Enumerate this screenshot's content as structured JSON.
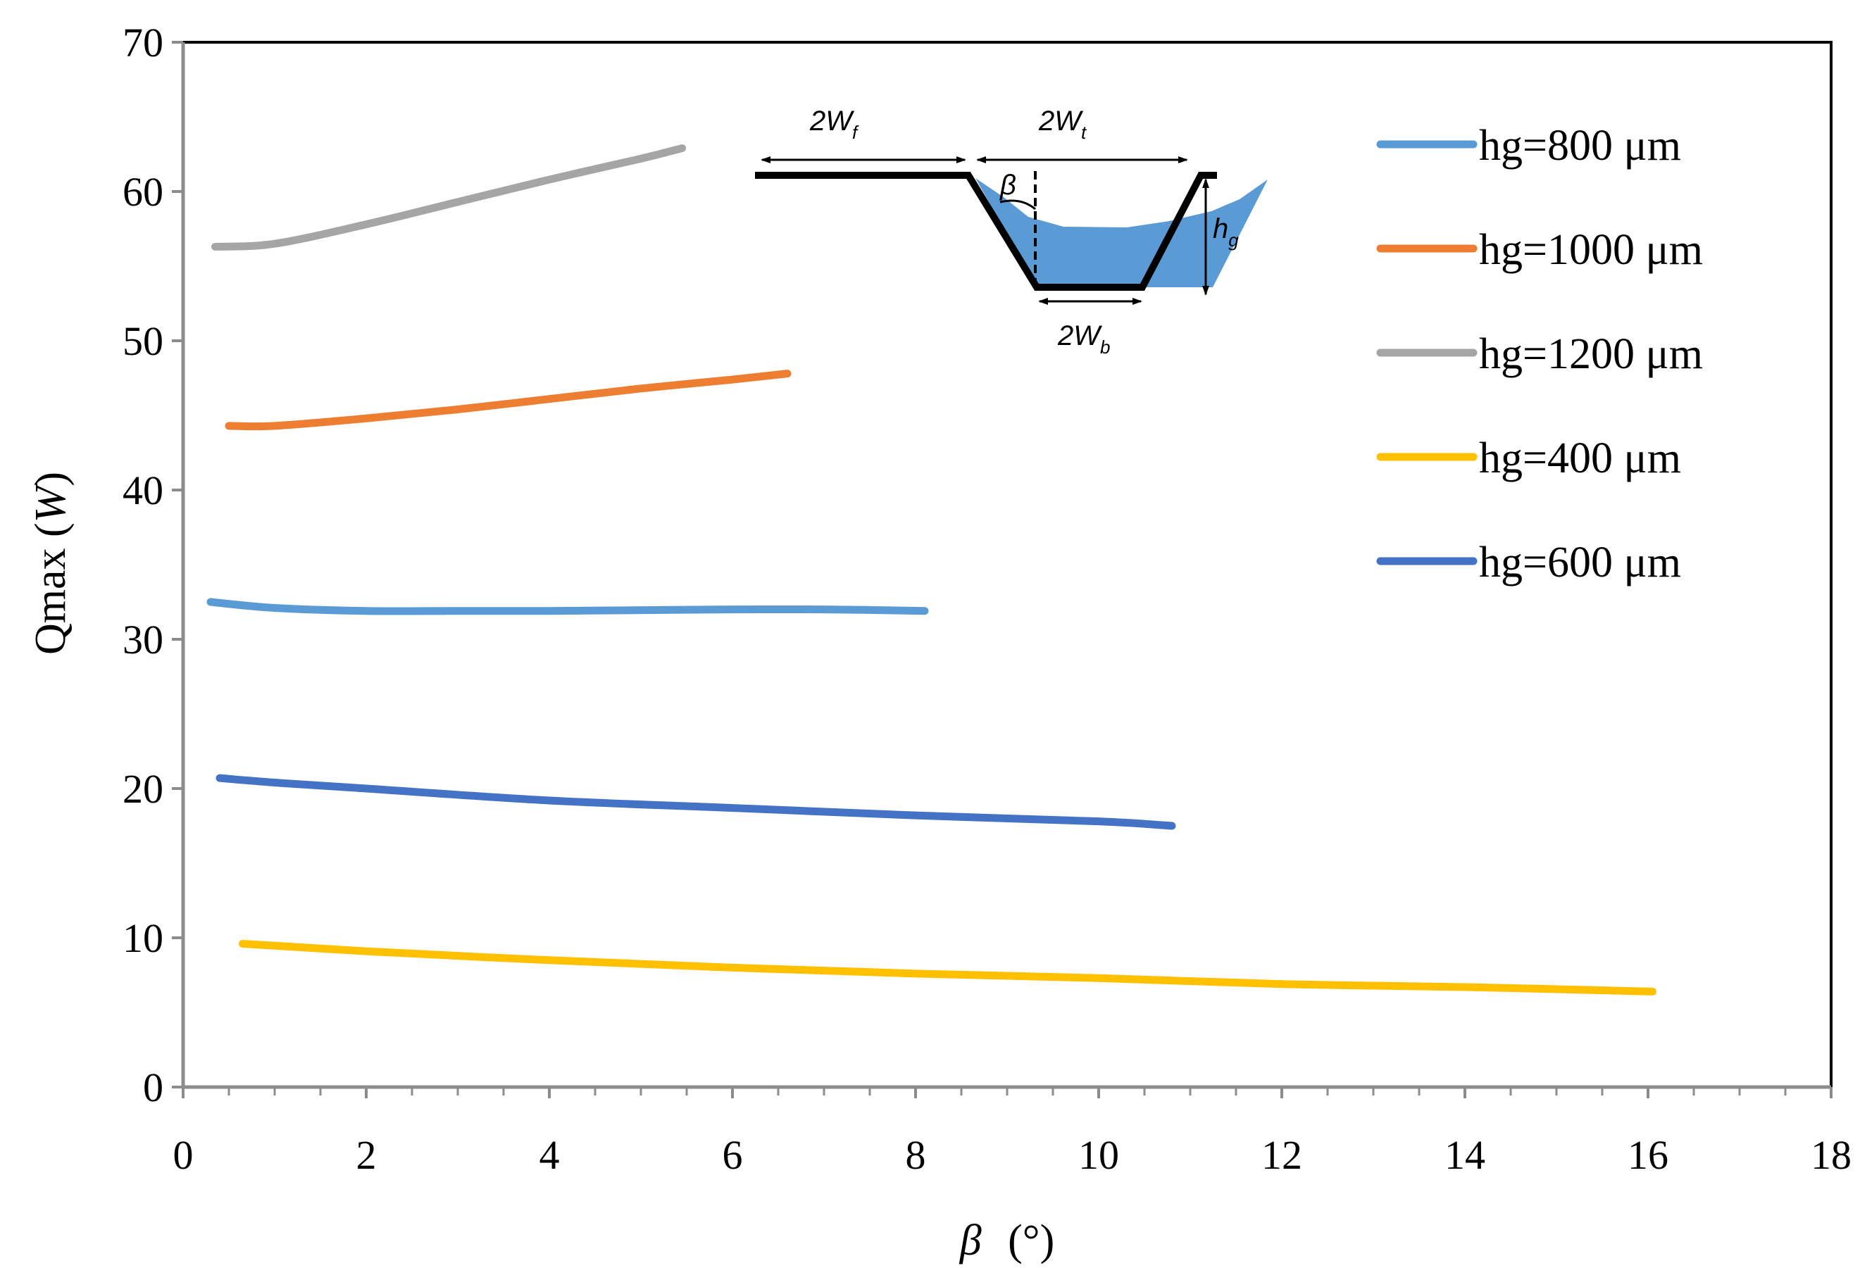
{
  "chart_data": {
    "type": "line",
    "xlabel": "β",
    "xlabel_unit": "(°)",
    "ylabel_main": "Qmax",
    "ylabel_unit_open": " (",
    "ylabel_unit": "W",
    "ylabel_unit_close": ")",
    "xlim": [
      0,
      18
    ],
    "ylim": [
      0,
      70
    ],
    "x_ticks": [
      0,
      2,
      4,
      6,
      8,
      10,
      12,
      14,
      16,
      18
    ],
    "y_ticks": [
      0,
      10,
      20,
      30,
      40,
      50,
      60,
      70
    ],
    "grid": false,
    "legend_position": "right",
    "series": [
      {
        "name": "hg=800 μm",
        "color": "#5b9bd5",
        "x": [
          0.3,
          1,
          2,
          3,
          4,
          5,
          6,
          7,
          8.1
        ],
        "y": [
          32.5,
          32.1,
          31.9,
          31.9,
          31.9,
          31.95,
          32,
          32,
          31.9
        ]
      },
      {
        "name": "hg=1000 μm",
        "color": "#ed7d31",
        "x": [
          0.5,
          1,
          2,
          3,
          4,
          5,
          6,
          6.6
        ],
        "y": [
          44.3,
          44.3,
          44.8,
          45.4,
          46.1,
          46.8,
          47.4,
          47.8
        ]
      },
      {
        "name": "hg=1200 μm",
        "color": "#a5a5a5",
        "x": [
          0.35,
          1,
          2,
          3,
          4,
          5,
          5.45
        ],
        "y": [
          56.3,
          56.5,
          57.8,
          59.3,
          60.8,
          62.2,
          62.9
        ]
      },
      {
        "name": "hg=400 μm",
        "color": "#ffc000",
        "x": [
          0.65,
          2,
          4,
          6,
          8,
          10,
          12,
          14,
          16.05
        ],
        "y": [
          9.6,
          9.1,
          8.5,
          8.0,
          7.6,
          7.3,
          6.9,
          6.7,
          6.4
        ]
      },
      {
        "name": "hg=600 μm",
        "color": "#4472c4",
        "x": [
          0.4,
          1,
          2,
          4,
          6,
          8,
          10,
          10.8
        ],
        "y": [
          20.7,
          20.4,
          20.0,
          19.2,
          18.7,
          18.2,
          17.8,
          17.5
        ]
      }
    ]
  },
  "inset": {
    "label_wf_main": "2W",
    "label_wf_sub": "f",
    "label_wt_main": "2W",
    "label_wt_sub": "t",
    "label_wb_main": "2W",
    "label_wb_sub": "b",
    "label_hg_main": "h",
    "label_hg_sub": "g",
    "label_beta": "β",
    "fluid_color": "#5b9bd5"
  }
}
